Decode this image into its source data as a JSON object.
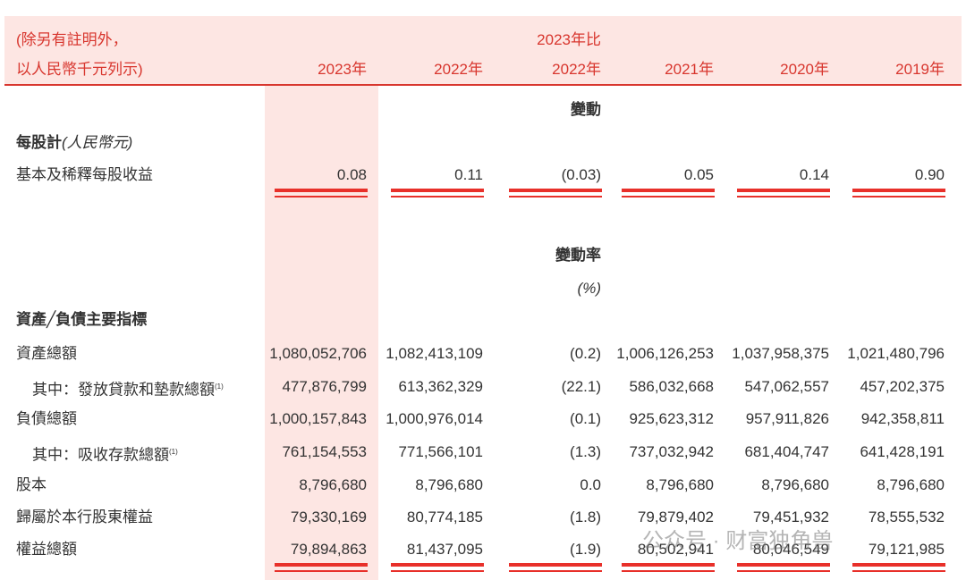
{
  "header": {
    "note": [
      "(除另有註明外，",
      "以人民幣千元列示)"
    ],
    "compare_label": "2023年比",
    "years": [
      "2023年",
      "2022年",
      "2022年",
      "2021年",
      "2020年",
      "2019年"
    ]
  },
  "sections": [
    {
      "change_label": "變動",
      "title": "每股計",
      "title_unit": "(人民幣元)",
      "rows": [
        {
          "label": "基本及稀釋每股收益",
          "values": [
            "0.08",
            "0.11",
            "(0.03)",
            "0.05",
            "0.14",
            "0.90"
          ]
        }
      ]
    },
    {
      "change_label": "變動率",
      "change_unit": "(%)",
      "title": "資產╱負債主要指標",
      "rows": [
        {
          "label": "資產總額",
          "values": [
            "1,080,052,706",
            "1,082,413,109",
            "(0.2)",
            "1,006,126,253",
            "1,037,958,375",
            "1,021,480,796"
          ]
        },
        {
          "label": "其中：發放貸款和墊款總額",
          "note": "(1)",
          "values": [
            "477,876,799",
            "613,362,329",
            "(22.1)",
            "586,032,668",
            "547,062,557",
            "457,202,375"
          ]
        },
        {
          "label": "負債總額",
          "values": [
            "1,000,157,843",
            "1,000,976,014",
            "(0.1)",
            "925,623,312",
            "957,911,826",
            "942,358,811"
          ]
        },
        {
          "label": "其中：吸收存款總額",
          "note": "(1)",
          "values": [
            "761,154,553",
            "771,566,101",
            "(1.3)",
            "737,032,942",
            "681,404,747",
            "641,428,191"
          ]
        },
        {
          "label": "股本",
          "values": [
            "8,796,680",
            "8,796,680",
            "0.0",
            "8,796,680",
            "8,796,680",
            "8,796,680"
          ]
        },
        {
          "label": "歸屬於本行股東權益",
          "values": [
            "79,330,169",
            "80,774,185",
            "(1.8)",
            "79,879,402",
            "79,451,932",
            "78,555,532"
          ]
        },
        {
          "label": "權益總額",
          "values": [
            "79,894,863",
            "81,437,095",
            "(1.9)",
            "80,502,941",
            "80,046,549",
            "79,121,985"
          ]
        }
      ]
    }
  ],
  "watermark": "公众号 · 财富独角兽"
}
